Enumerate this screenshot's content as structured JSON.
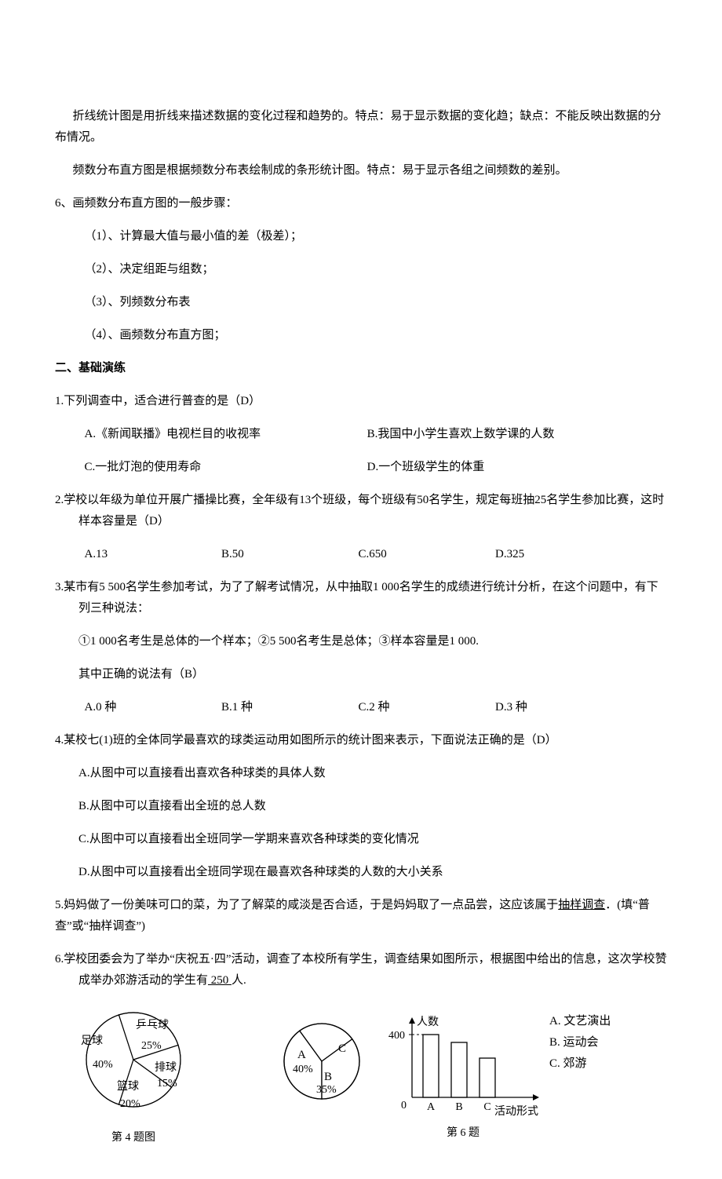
{
  "intro": {
    "line_chart": "折线统计图是用折线来描述数据的变化过程和趋势的。特点：易于显示数据的变化趋；缺点：不能反映出数据的分布情况。",
    "histogram": "频数分布直方图是根据频数分布表绘制成的条形统计图。特点：易于显示各组之间频数的差别。",
    "step_title": "6、画频数分布直方图的一般步骤：",
    "steps": [
      "（1）、计算最大值与最小值的差（极差）；",
      "（2）、决定组距与组数；",
      "（3）、列频数分布表",
      "（4）、画频数分布直方图；"
    ]
  },
  "section2_title": "二、基础演练",
  "q1": {
    "stem": "1.下列调查中，适合进行普查的是（D）",
    "a": "A.《新闻联播》电视栏目的收视率",
    "b": "B.我国中小学生喜欢上数学课的人数",
    "c": "C.一批灯泡的使用寿命",
    "d": "D.一个班级学生的体重"
  },
  "q2": {
    "stem": "2.学校以年级为单位开展广播操比赛，全年级有13个班级，每个班级有50名学生，规定每班抽25名学生参加比赛，这时样本容量是（D）",
    "a": "A.13",
    "b": "B.50",
    "c": "C.650",
    "d": "D.325"
  },
  "q3": {
    "stem1": "3.某市有5 500名学生参加考试，为了了解考试情况，从中抽取1 000名学生的成绩进行统计分析，在这个问题中，有下列三种说法：",
    "stem2": "①1 000名考生是总体的一个样本；②5 500名考生是总体；③样本容量是1 000.",
    "stem3": "其中正确的说法有（B）",
    "a": "A.0 种",
    "b": "B.1 种",
    "c": "C.2 种",
    "d": "D.3 种"
  },
  "q4": {
    "stem": "4.某校七(1)班的全体同学最喜欢的球类运动用如图所示的统计图来表示，下面说法正确的是（D）",
    "a": "A.从图中可以直接看出喜欢各种球类的具体人数",
    "b": "B.从图中可以直接看出全班的总人数",
    "c": "C.从图中可以直接看出全班同学一学期来喜欢各种球类的变化情况",
    "d": "D.从图中可以直接看出全班同学现在最喜欢各种球类的人数的大小关系"
  },
  "q5": {
    "pre": "5.妈妈做了一份美味可口的菜，为了了解菜的咸淡是否合适，于是妈妈取了一点品尝，这应该属于",
    "ans": "抽样调查",
    "post": "．(填“普查”或“抽样调查”)"
  },
  "q6": {
    "pre": "6.学校团委会为了举办“庆祝五·四”活动，调查了本校所有学生，调查结果如图所示，根据图中给出的信息，这次学校赞成举办郊游活动的学生有",
    "ans": " 250 ",
    "post": "人."
  },
  "fig4": {
    "caption": "第 4 题图",
    "slices": [
      {
        "label": "足球",
        "pct": "40%",
        "value": 40,
        "color": "#ffffff"
      },
      {
        "label": "乒乓球",
        "pct": "25%",
        "value": 25,
        "color": "#ffffff"
      },
      {
        "label": "排球",
        "pct": "15%",
        "value": 15,
        "color": "#ffffff"
      },
      {
        "label": "篮球",
        "pct": "20%",
        "value": 20,
        "color": "#ffffff"
      }
    ],
    "stroke": "#000000",
    "radius": 60
  },
  "fig6": {
    "caption": "第 6 题",
    "pie": {
      "slices": [
        {
          "label": "A",
          "pct": "40%",
          "value": 40
        },
        {
          "label": "C",
          "pct": "",
          "value": 25
        },
        {
          "label": "B",
          "pct": "35%",
          "value": 35
        }
      ],
      "stroke": "#000000"
    },
    "bar": {
      "ylabel": "人数",
      "xlabel": "活动形式",
      "ytick": "400",
      "categories": [
        "A",
        "B",
        "C"
      ],
      "values": [
        400,
        350,
        250
      ],
      "ymax": 450,
      "bar_fill": "#ffffff",
      "bar_stroke": "#000000"
    },
    "legend": {
      "a": "A. 文艺演出",
      "b": "B. 运动会",
      "c": "C. 郊游"
    }
  }
}
